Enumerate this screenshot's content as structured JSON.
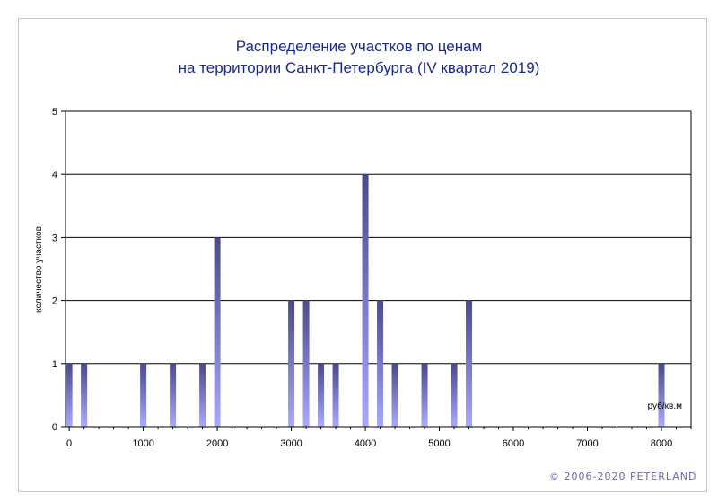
{
  "chart_data": {
    "type": "bar",
    "title": "Распределение  участков по ценам",
    "subtitle": "на территории Санкт-Петербурга (IV квартал 2019)",
    "xlabel": "руб/кв.м",
    "ylabel": "количество участков",
    "xlim": [
      -50,
      8400
    ],
    "ylim": [
      0,
      5
    ],
    "x_ticks": [
      0,
      1000,
      2000,
      3000,
      4000,
      5000,
      6000,
      7000,
      8000
    ],
    "y_ticks": [
      0,
      1,
      2,
      3,
      4,
      5
    ],
    "grid": true,
    "x": [
      0,
      200,
      1000,
      1400,
      1800,
      2000,
      3000,
      3200,
      3400,
      3600,
      4000,
      4200,
      4400,
      4800,
      5200,
      5400,
      8000
    ],
    "values": [
      1,
      1,
      1,
      1,
      1,
      3,
      2,
      2,
      1,
      1,
      4,
      2,
      1,
      1,
      1,
      2,
      1
    ],
    "colors": {
      "bar_top": "#4a4a8c",
      "bar_bottom": "#a8a8ff",
      "title": "#1a2a8c",
      "grid": "#000000"
    }
  },
  "copyright": "© 2006-2020  PETERLAND"
}
